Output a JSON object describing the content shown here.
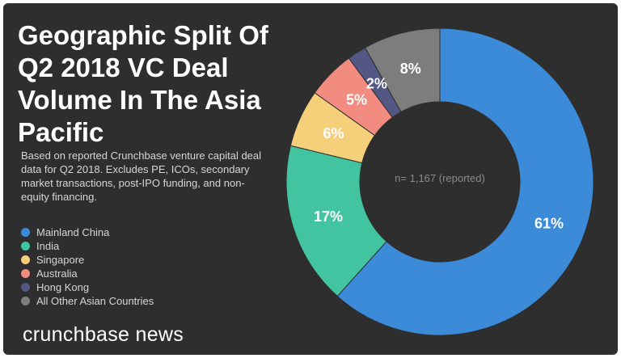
{
  "chart_data": {
    "type": "pie",
    "title": "Geographic Split Of Q2 2018 VC Deal Volume In The Asia Pacific",
    "subtitle": "Based on reported Crunchbase venture capital deal data for Q2 2018. Excludes PE, ICOs, secondary market transactions, post-IPO funding, and non-equity financing.",
    "center_label": "n= 1,167 (reported)",
    "legend_position": "bottom-left",
    "categories": [
      "Mainland China",
      "India",
      "Singapore",
      "Australia",
      "Hong Kong",
      "All Other Asian Countries"
    ],
    "values": [
      61,
      17,
      6,
      5,
      2,
      8
    ],
    "value_labels": [
      "61%",
      "17%",
      "6%",
      "5%",
      "2%",
      "8%"
    ],
    "colors": [
      "#3b8bd9",
      "#43c4a0",
      "#f6cf7a",
      "#f28b80",
      "#535783",
      "#7d7d7d"
    ]
  },
  "brand": "crunchbase news"
}
